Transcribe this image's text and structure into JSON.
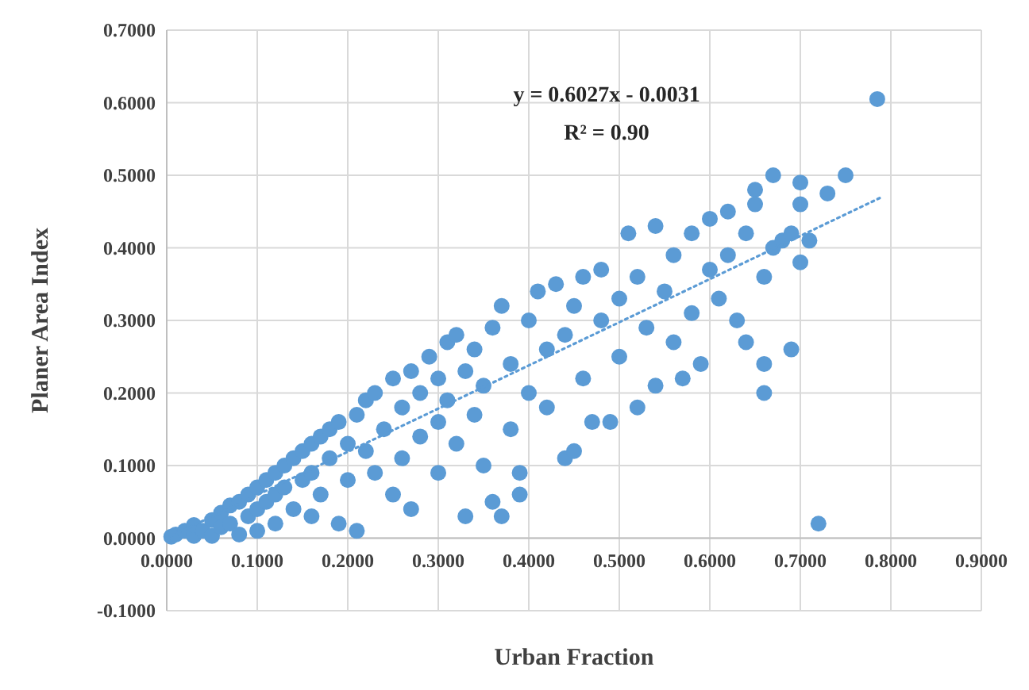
{
  "chart_data": {
    "type": "scatter",
    "xlabel": "Urban Fraction",
    "ylabel": "Planer Area Index",
    "annotations": [
      "y = 0.6027x - 0.0031",
      "R² = 0.90"
    ],
    "xlim": [
      0,
      0.9
    ],
    "ylim": [
      -0.1,
      0.7
    ],
    "xticks": [
      {
        "value": 0,
        "label": "0.0000"
      },
      {
        "value": 0.1,
        "label": "0.1000"
      },
      {
        "value": 0.2,
        "label": "0.2000"
      },
      {
        "value": 0.3,
        "label": "0.3000"
      },
      {
        "value": 0.4,
        "label": "0.4000"
      },
      {
        "value": 0.5,
        "label": "0.5000"
      },
      {
        "value": 0.6,
        "label": "0.6000"
      },
      {
        "value": 0.7,
        "label": "0.7000"
      },
      {
        "value": 0.8,
        "label": "0.8000"
      },
      {
        "value": 0.9,
        "label": "0.9000"
      }
    ],
    "yticks": [
      {
        "value": -0.1,
        "label": "-0.1000"
      },
      {
        "value": 0,
        "label": "0.0000"
      },
      {
        "value": 0.1,
        "label": "0.1000"
      },
      {
        "value": 0.2,
        "label": "0.2000"
      },
      {
        "value": 0.3,
        "label": "0.3000"
      },
      {
        "value": 0.4,
        "label": "0.4000"
      },
      {
        "value": 0.5,
        "label": "0.5000"
      },
      {
        "value": 0.6,
        "label": "0.6000"
      },
      {
        "value": 0.7,
        "label": "0.7000"
      }
    ],
    "grid": true,
    "marker": "circle",
    "series": [
      {
        "color": "#5b9bd5",
        "x": [
          0.005,
          0.01,
          0.02,
          0.03,
          0.03,
          0.04,
          0.05,
          0.05,
          0.06,
          0.06,
          0.07,
          0.07,
          0.08,
          0.08,
          0.09,
          0.09,
          0.1,
          0.1,
          0.1,
          0.11,
          0.11,
          0.12,
          0.12,
          0.12,
          0.13,
          0.13,
          0.14,
          0.14,
          0.15,
          0.15,
          0.16,
          0.16,
          0.16,
          0.17,
          0.17,
          0.18,
          0.18,
          0.19,
          0.19,
          0.2,
          0.2,
          0.21,
          0.21,
          0.22,
          0.22,
          0.23,
          0.23,
          0.24,
          0.25,
          0.25,
          0.26,
          0.26,
          0.27,
          0.27,
          0.28,
          0.28,
          0.29,
          0.3,
          0.3,
          0.3,
          0.31,
          0.31,
          0.32,
          0.32,
          0.33,
          0.33,
          0.34,
          0.34,
          0.35,
          0.35,
          0.36,
          0.36,
          0.37,
          0.37,
          0.38,
          0.38,
          0.39,
          0.39,
          0.4,
          0.4,
          0.41,
          0.42,
          0.42,
          0.43,
          0.44,
          0.44,
          0.45,
          0.45,
          0.46,
          0.46,
          0.47,
          0.48,
          0.48,
          0.49,
          0.5,
          0.5,
          0.51,
          0.52,
          0.52,
          0.53,
          0.54,
          0.54,
          0.55,
          0.56,
          0.56,
          0.57,
          0.58,
          0.58,
          0.59,
          0.6,
          0.6,
          0.61,
          0.62,
          0.62,
          0.63,
          0.64,
          0.64,
          0.65,
          0.65,
          0.66,
          0.66,
          0.66,
          0.67,
          0.67,
          0.68,
          0.69,
          0.69,
          0.7,
          0.7,
          0.7,
          0.71,
          0.72,
          0.73,
          0.75,
          0.785
        ],
        "values": [
          0.002,
          0.005,
          0.01,
          0.003,
          0.018,
          0.01,
          0.025,
          0.003,
          0.035,
          0.015,
          0.045,
          0.02,
          0.05,
          0.005,
          0.06,
          0.03,
          0.07,
          0.04,
          0.01,
          0.08,
          0.05,
          0.09,
          0.06,
          0.02,
          0.1,
          0.07,
          0.11,
          0.04,
          0.12,
          0.08,
          0.13,
          0.09,
          0.03,
          0.14,
          0.06,
          0.15,
          0.11,
          0.02,
          0.16,
          0.13,
          0.08,
          0.01,
          0.17,
          0.19,
          0.12,
          0.2,
          0.09,
          0.15,
          0.22,
          0.06,
          0.18,
          0.11,
          0.04,
          0.23,
          0.2,
          0.14,
          0.25,
          0.22,
          0.16,
          0.09,
          0.27,
          0.19,
          0.28,
          0.13,
          0.03,
          0.23,
          0.26,
          0.17,
          0.21,
          0.1,
          0.29,
          0.05,
          0.03,
          0.32,
          0.24,
          0.15,
          0.06,
          0.09,
          0.3,
          0.2,
          0.34,
          0.26,
          0.18,
          0.35,
          0.28,
          0.11,
          0.12,
          0.32,
          0.22,
          0.36,
          0.16,
          0.3,
          0.37,
          0.16,
          0.25,
          0.33,
          0.42,
          0.36,
          0.18,
          0.29,
          0.43,
          0.21,
          0.34,
          0.39,
          0.27,
          0.22,
          0.42,
          0.31,
          0.24,
          0.37,
          0.44,
          0.33,
          0.45,
          0.39,
          0.3,
          0.27,
          0.42,
          0.48,
          0.46,
          0.24,
          0.2,
          0.36,
          0.4,
          0.5,
          0.41,
          0.26,
          0.42,
          0.49,
          0.38,
          0.46,
          0.41,
          0.02,
          0.475,
          0.5,
          0.605
        ]
      },
      {
        "type": "line",
        "color": "#5b9bd5",
        "line_style": "dotted",
        "marker": "none",
        "x": [
          0,
          0.79
        ],
        "values": [
          0,
          0.47
        ]
      }
    ]
  }
}
